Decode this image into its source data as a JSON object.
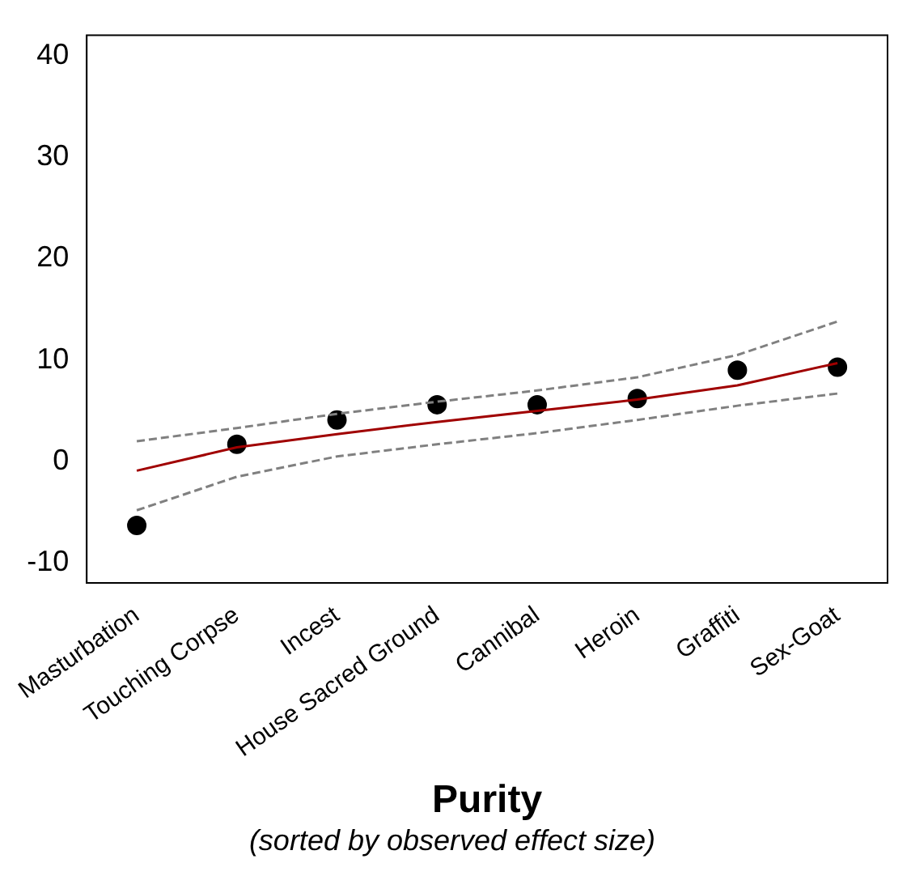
{
  "chart_data": {
    "type": "scatter",
    "xlabel": "Purity",
    "subtitle": "(sorted by observed effect size)",
    "categories": [
      "Masturbation",
      "Touching Corpse",
      "Incest",
      "House Sacred Ground",
      "Cannibal",
      "Heroin",
      "Graffiti",
      "Sex-Goat"
    ],
    "ylim": [
      -12,
      42
    ],
    "yticks": [
      -10,
      0,
      10,
      20,
      30,
      40
    ],
    "grid": false,
    "legend": false,
    "marker": "circle",
    "series": [
      {
        "type": "line",
        "color": "#808080",
        "line_style": "dashed",
        "marker": "none",
        "values": [
          2.0,
          3.3,
          4.7,
          5.9,
          7.0,
          8.3,
          10.5,
          13.8
        ]
      },
      {
        "type": "line",
        "color": "#808080",
        "line_style": "dashed",
        "marker": "none",
        "values": [
          -4.8,
          -1.5,
          0.5,
          1.7,
          2.8,
          4.1,
          5.5,
          6.7
        ]
      },
      {
        "type": "line",
        "color": "#a00000",
        "line_style": "solid",
        "marker": "none",
        "values": [
          -0.9,
          1.4,
          2.7,
          3.9,
          5.0,
          6.1,
          7.5,
          9.7
        ]
      },
      {
        "color": "#000000",
        "values": [
          -6.3,
          1.7,
          4.1,
          5.6,
          5.6,
          6.2,
          9.0,
          9.3
        ]
      }
    ]
  }
}
